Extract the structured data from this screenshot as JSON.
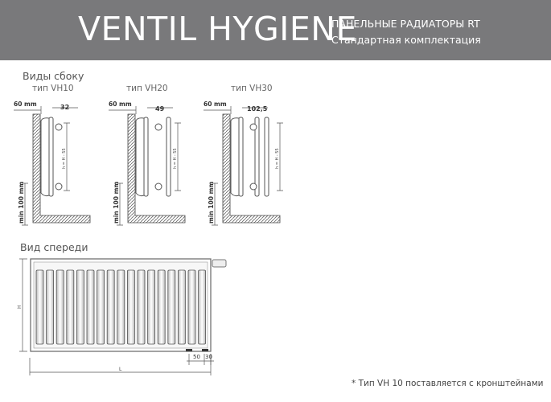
{
  "header": {
    "title": "VENTIL HYGIENE",
    "subtitle1": "ПАНЕЛЬНЫЕ РАДИАТОРЫ RT",
    "subtitle2": "Стандартная комплектация",
    "background": "#79797b"
  },
  "side_views": {
    "heading": "Виды сбоку",
    "types": [
      {
        "label": "тип VH10",
        "wall_offset": "60 mm",
        "depth": "32",
        "height_dim": "h = H - 55",
        "min_floor": "min 100 mm",
        "panels": 1
      },
      {
        "label": "тип VH20",
        "wall_offset": "60 mm",
        "depth": "49",
        "height_dim": "h = H - 55",
        "min_floor": "min 100 mm",
        "panels": 2
      },
      {
        "label": "тип VH30",
        "wall_offset": "60 mm",
        "depth": "102,5",
        "height_dim": "h = H - 55",
        "min_floor": "min 100 mm",
        "panels": 3
      }
    ]
  },
  "front_view": {
    "heading": "Вид спереди",
    "height_label": "H",
    "length_label": "L",
    "dim_a": "50",
    "dim_b": "30",
    "fins": 17
  },
  "footnote": "* Тип VH 10 поставляется с кронштейнами"
}
